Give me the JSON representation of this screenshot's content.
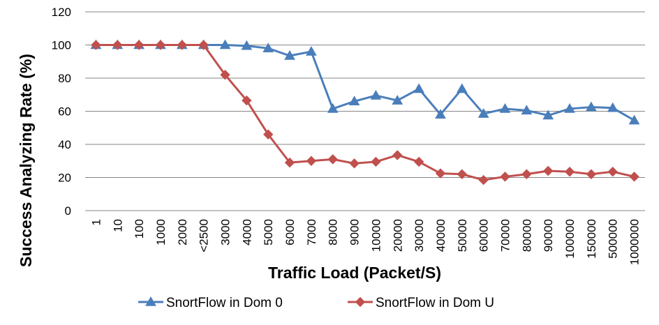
{
  "chart_data": {
    "type": "line",
    "title": "",
    "xlabel": "Traffic Load (Packet/S)",
    "ylabel": "Success Analyzing Rate (%)",
    "ylim": [
      0,
      120
    ],
    "yticks": [
      "0",
      "20",
      "40",
      "60",
      "80",
      "100",
      "120"
    ],
    "grid": "horizontal",
    "legend_position": "bottom",
    "categories": [
      "1",
      "10",
      "100",
      "1000",
      "2000",
      "<2500",
      "3000",
      "4000",
      "5000",
      "6000",
      "7000",
      "8000",
      "9000",
      "10000",
      "20000",
      "30000",
      "40000",
      "50000",
      "60000",
      "70000",
      "80000",
      "90000",
      "100000",
      "150000",
      "500000",
      "1000000"
    ],
    "series": [
      {
        "name": "SnortFlow in Dom 0",
        "color": "#4a7ebb",
        "marker": "triangle",
        "values": [
          100,
          100,
          100,
          100,
          100,
          100,
          100,
          99.5,
          98,
          93.5,
          96,
          61.5,
          66,
          69.5,
          66.5,
          73.5,
          58,
          73.5,
          58.5,
          61.5,
          60.5,
          57.5,
          61.5,
          62.5,
          62,
          54.5
        ]
      },
      {
        "name": "SnortFlow in Dom U",
        "color": "#c0504d",
        "marker": "diamond",
        "values": [
          100,
          100,
          100,
          100,
          100,
          100,
          82,
          66.5,
          46,
          29,
          30,
          31,
          28.5,
          29.5,
          33.5,
          29.5,
          22.5,
          22,
          18.5,
          20.5,
          22,
          24,
          23.5,
          22,
          23.5,
          20.5
        ]
      }
    ]
  }
}
